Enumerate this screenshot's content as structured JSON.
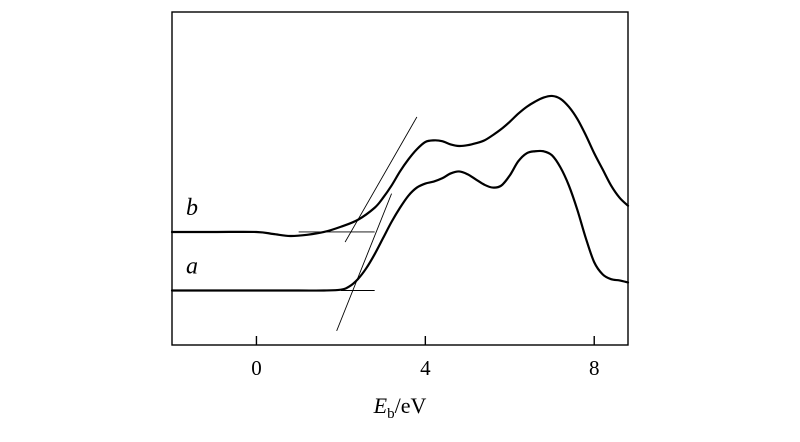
{
  "chart_data": {
    "type": "line",
    "xlabel_main": "E",
    "xlabel_sub": "b",
    "xlabel_unit": "/eV",
    "xlim": [
      -2.0,
      8.8
    ],
    "ylim": [
      -1.35,
      6.9
    ],
    "ticks": [
      0,
      4,
      8
    ],
    "tick_labels": [
      "0",
      "4",
      "8"
    ],
    "grid": false,
    "legend": "none",
    "series": [
      {
        "name": "a",
        "x": [
          -2.0,
          -1.0,
          0.0,
          1.0,
          1.6,
          2.0,
          2.2,
          2.4,
          2.6,
          2.8,
          3.0,
          3.2,
          3.4,
          3.6,
          3.8,
          4.0,
          4.2,
          4.4,
          4.6,
          4.8,
          5.0,
          5.2,
          5.4,
          5.6,
          5.8,
          6.0,
          6.2,
          6.4,
          6.6,
          6.8,
          7.0,
          7.2,
          7.4,
          7.6,
          7.8,
          8.0,
          8.2,
          8.4,
          8.6,
          8.8
        ],
        "y": [
          0.0,
          0.0,
          0.0,
          0.0,
          0.0,
          0.02,
          0.1,
          0.28,
          0.55,
          0.9,
          1.3,
          1.7,
          2.05,
          2.35,
          2.55,
          2.65,
          2.7,
          2.78,
          2.9,
          2.95,
          2.88,
          2.75,
          2.62,
          2.55,
          2.6,
          2.85,
          3.2,
          3.4,
          3.45,
          3.45,
          3.35,
          3.05,
          2.6,
          2.0,
          1.3,
          0.7,
          0.4,
          0.28,
          0.25,
          0.2
        ]
      },
      {
        "name": "b",
        "x": [
          -2.0,
          -1.0,
          0.0,
          0.4,
          0.8,
          1.2,
          1.6,
          2.0,
          2.4,
          2.8,
          3.0,
          3.2,
          3.4,
          3.6,
          3.8,
          4.0,
          4.2,
          4.4,
          4.6,
          4.8,
          5.0,
          5.2,
          5.4,
          5.6,
          5.8,
          6.0,
          6.2,
          6.4,
          6.6,
          6.8,
          7.0,
          7.2,
          7.4,
          7.6,
          7.8,
          8.0,
          8.2,
          8.4,
          8.6,
          8.8
        ],
        "y": [
          1.45,
          1.45,
          1.45,
          1.4,
          1.35,
          1.38,
          1.45,
          1.58,
          1.75,
          2.05,
          2.3,
          2.6,
          2.95,
          3.25,
          3.5,
          3.68,
          3.72,
          3.7,
          3.62,
          3.58,
          3.6,
          3.65,
          3.72,
          3.85,
          4.0,
          4.18,
          4.38,
          4.55,
          4.68,
          4.78,
          4.82,
          4.75,
          4.55,
          4.25,
          3.85,
          3.4,
          3.0,
          2.6,
          2.3,
          2.1
        ]
      }
    ],
    "tangents": [
      {
        "series": "a",
        "baseline_y": 0.0,
        "x_start": 2.0,
        "x_end": 2.8,
        "slope_line": [
          [
            1.9,
            -1.0
          ],
          [
            3.2,
            2.4
          ]
        ]
      },
      {
        "series": "b",
        "baseline_y": 1.45,
        "x_start": 1.0,
        "x_end": 2.8,
        "slope_line": [
          [
            2.1,
            1.2
          ],
          [
            3.8,
            4.3
          ]
        ]
      }
    ]
  }
}
